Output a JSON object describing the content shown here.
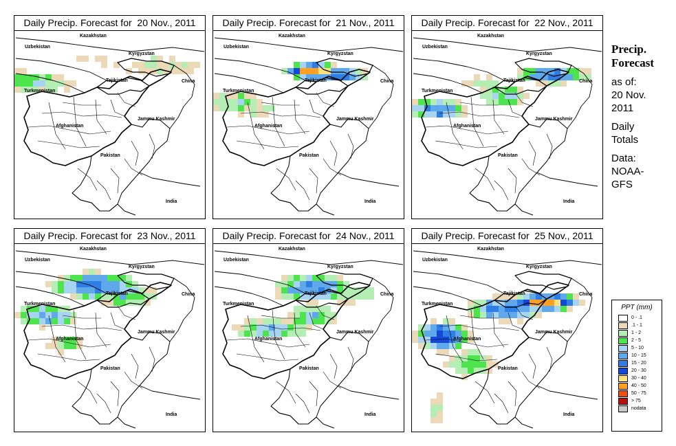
{
  "panels": [
    {
      "title": "Daily Precip. Forecast for  20 Nov., 2011",
      "intensity": 0
    },
    {
      "title": "Daily Precip. Forecast for  21 Nov., 2011",
      "intensity": 1
    },
    {
      "title": "Daily Precip. Forecast for  22 Nov., 2011",
      "intensity": 2
    },
    {
      "title": "Daily Precip. Forecast for  23 Nov., 2011",
      "intensity": 3
    },
    {
      "title": "Daily Precip. Forecast for  24 Nov., 2011",
      "intensity": 4
    },
    {
      "title": "Daily Precip. Forecast for  25 Nov., 2011",
      "intensity": 5
    }
  ],
  "map_labels": {
    "kazakhstan": "Kazakhstan",
    "uzbekistan": "Uzbekistan",
    "kyrgyzstan": "Kyrgyzstan",
    "tajikistan": "Tajikistan",
    "china": "China",
    "turkmenistan": "Turkmenistan",
    "jammu_kashmir": "Jammu Kashmir",
    "afghanistan": "Afghanistan",
    "pakistan": "Pakistan",
    "india": "India"
  },
  "sidebar": {
    "title_line1": "Precip.",
    "title_line2": "Forecast",
    "as_of_line1": "as of:",
    "as_of_line2": "20 Nov.",
    "as_of_line3": "2011",
    "totals_line1": "Daily",
    "totals_line2": "Totals",
    "data_line1": "Data:",
    "data_line2": "NOAA-",
    "data_line3": "GFS"
  },
  "legend": {
    "title": "PPT (mm)",
    "items": [
      {
        "label": "0 - .1",
        "color": "#ffffff"
      },
      {
        "label": ".1 - 1",
        "color": "#ecd9b8"
      },
      {
        "label": "1 - 2",
        "color": "#b4eeb4"
      },
      {
        "label": "2 - 5",
        "color": "#4ee44e"
      },
      {
        "label": "5 - 10",
        "color": "#a8d4f4"
      },
      {
        "label": "10 - 15",
        "color": "#5fa8ec"
      },
      {
        "label": "15 - 20",
        "color": "#2e7ee6"
      },
      {
        "label": "20 - 30",
        "color": "#1448d8"
      },
      {
        "label": "30 - 40",
        "color": "#ffe07a"
      },
      {
        "label": "40 - 50",
        "color": "#ffa020"
      },
      {
        "label": "50 - 75",
        "color": "#f05010"
      },
      {
        "label": "> 75",
        "color": "#b41010"
      },
      {
        "label": "nodata",
        "color": "#c8c8c8"
      }
    ]
  }
}
